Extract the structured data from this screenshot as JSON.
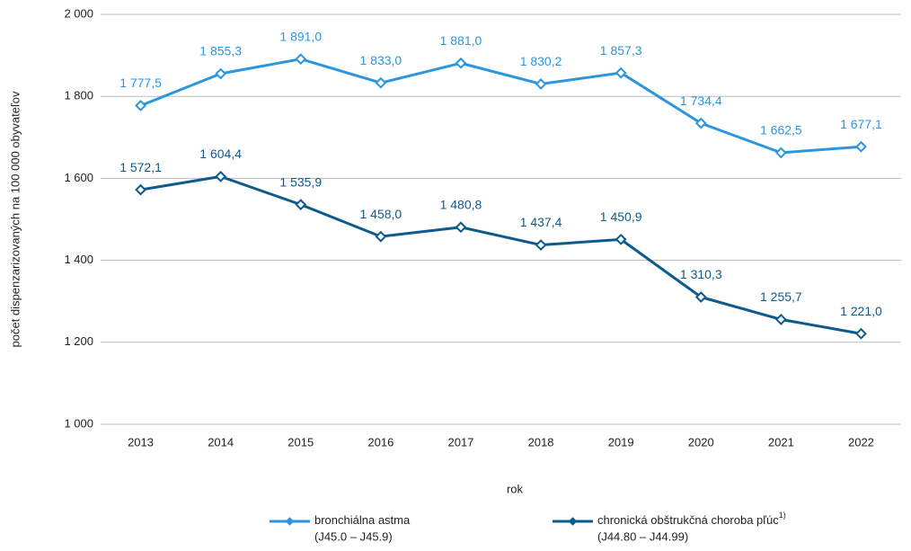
{
  "chart_data": {
    "type": "line",
    "ylabel": "počet dispenzarizovaných na 100 000 obyvateľov",
    "xlabel": "rok",
    "categories": [
      "2013",
      "2014",
      "2015",
      "2016",
      "2017",
      "2018",
      "2019",
      "2020",
      "2021",
      "2022"
    ],
    "series": [
      {
        "name": "bronchiálna  astma",
        "code": "(J45.0 – J45.9)",
        "color": "#2b96de",
        "values": [
          1777.5,
          1855.3,
          1891.0,
          1833.0,
          1881.0,
          1830.2,
          1857.3,
          1734.4,
          1662.5,
          1677.1
        ],
        "value_labels": [
          "1 777,5",
          "1 855,3",
          "1 891,0",
          "1 833,0",
          "1 881,0",
          "1 830,2",
          "1 857,3",
          "1 734,4",
          "1 662,5",
          "1 677,1"
        ]
      },
      {
        "name": "chronická obštrukčná choroba pľúc",
        "name_note": "1)",
        "code": "(J44.80 – J44.99)",
        "color": "#0d5a8c",
        "values": [
          1572.1,
          1604.4,
          1535.9,
          1458.0,
          1480.8,
          1437.4,
          1450.9,
          1310.3,
          1255.7,
          1221.0
        ],
        "value_labels": [
          "1 572,1",
          "1 604,4",
          "1 535,9",
          "1 458,0",
          "1 480,8",
          "1 437,4",
          "1 450,9",
          "1 310,3",
          "1 255,7",
          "1 221,0"
        ]
      }
    ],
    "ylim": [
      1000,
      2000
    ],
    "yticks": [
      {
        "value": 1000,
        "label": "1 000"
      },
      {
        "value": 1200,
        "label": "1 200"
      },
      {
        "value": 1400,
        "label": "1 400"
      },
      {
        "value": 1600,
        "label": "1 600"
      },
      {
        "value": 1800,
        "label": "1 800"
      },
      {
        "value": 2000,
        "label": "2 000"
      }
    ],
    "grid": true,
    "legend": "bottom"
  }
}
